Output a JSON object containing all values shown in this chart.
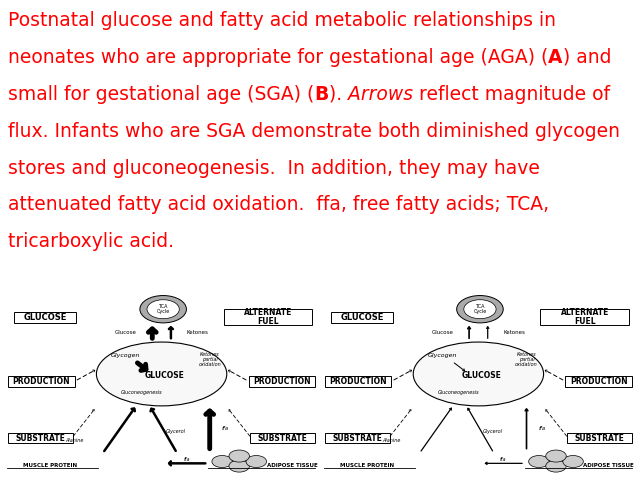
{
  "text_color": "#FF0000",
  "bg_color": "#FFFFFF",
  "font_size_caption": 13.5,
  "font_size_diagram": 6.0,
  "line1": "Postnatal glucose and fatty acid metabolic relationships in",
  "line2a": "neonates who are appropriate for gestational age (AGA) (",
  "line2b": "A",
  "line2c": ") and",
  "line3a": "small for gestational age (SGA) (",
  "line3b": "B",
  "line3c": "). ",
  "line3d": "Arrows",
  "line3e": " reflect magnitude of",
  "line4": "flux. Infants who are SGA demonstrate both diminished glycogen",
  "line5": "stores and gluconeogenesis.  In addition, they may have",
  "line6": "attenuated fatty acid oxidation.  ffa, free fatty acids; TCA,",
  "line7": "tricarboxylic acid."
}
